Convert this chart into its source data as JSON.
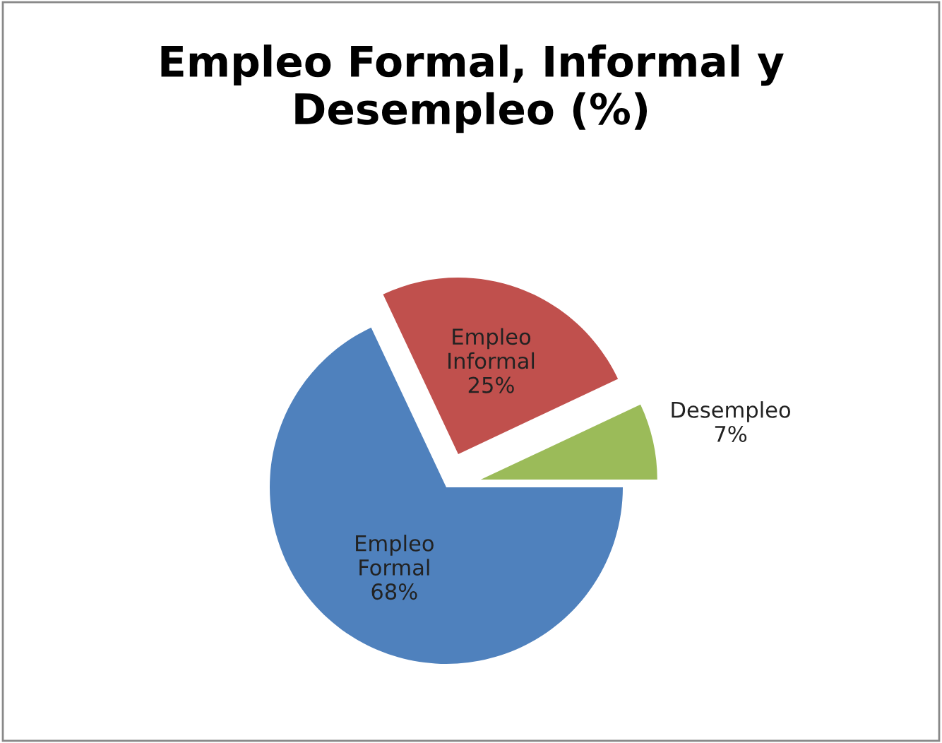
{
  "chart_data": {
    "type": "pie",
    "title": "Empleo Formal, Informal y Desempleo (%)",
    "categories": [
      "Empleo Formal",
      "Empleo Informal",
      "Desempleo"
    ],
    "values": [
      68,
      25,
      7
    ],
    "colors": [
      "#4f81bd",
      "#c0504d",
      "#9bbb59"
    ],
    "value_labels": [
      "68%",
      "25%",
      "7%"
    ],
    "legend": false
  }
}
